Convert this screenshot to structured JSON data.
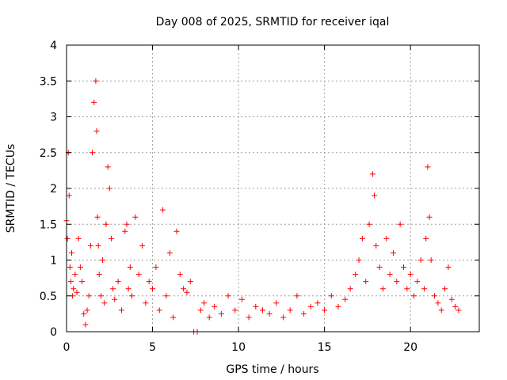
{
  "chart_data": {
    "type": "scatter",
    "title": "Day 008 of 2025, SRMTID for receiver iqal",
    "xlabel": "GPS time / hours",
    "ylabel": "SRMTID / TECUs",
    "xlim": [
      0,
      24
    ],
    "ylim": [
      0,
      4
    ],
    "xticks": [
      0,
      5,
      10,
      15,
      20
    ],
    "xtick_labels": [
      "0",
      "5",
      "10",
      "15",
      "20"
    ],
    "yticks": [
      0,
      0.5,
      1,
      1.5,
      2,
      2.5,
      3,
      3.5,
      4
    ],
    "ytick_labels": [
      "0",
      "0.5",
      "1",
      "1.5",
      "2",
      "2.5",
      "3",
      "3.5",
      "4"
    ],
    "grid": true,
    "marker": "+",
    "color": "#ff0000",
    "series": [
      {
        "name": "SRMTID",
        "x": [
          0.0,
          0.05,
          0.1,
          0.15,
          0.2,
          0.25,
          0.3,
          0.35,
          0.4,
          0.5,
          0.6,
          0.7,
          0.8,
          0.9,
          1.0,
          1.1,
          1.2,
          1.3,
          1.4,
          1.5,
          1.6,
          1.7,
          1.75,
          1.8,
          1.85,
          1.9,
          2.0,
          2.1,
          2.2,
          2.3,
          2.4,
          2.5,
          2.6,
          2.7,
          2.8,
          3.0,
          3.2,
          3.4,
          3.5,
          3.6,
          3.7,
          3.8,
          4.0,
          4.2,
          4.4,
          4.6,
          4.8,
          5.0,
          5.2,
          5.4,
          5.6,
          5.8,
          6.0,
          6.2,
          6.4,
          6.6,
          6.8,
          7.0,
          7.2,
          7.4,
          7.6,
          7.8,
          8.0,
          8.3,
          8.6,
          9.0,
          9.4,
          9.8,
          10.2,
          10.6,
          11.0,
          11.4,
          11.8,
          12.2,
          12.6,
          13.0,
          13.4,
          13.8,
          14.2,
          14.6,
          15.0,
          15.4,
          15.8,
          16.2,
          16.5,
          16.8,
          17.0,
          17.2,
          17.4,
          17.6,
          17.8,
          17.9,
          18.0,
          18.2,
          18.4,
          18.6,
          18.8,
          19.0,
          19.2,
          19.4,
          19.6,
          19.8,
          20.0,
          20.2,
          20.4,
          20.6,
          20.8,
          20.9,
          21.0,
          21.1,
          21.2,
          21.4,
          21.6,
          21.8,
          22.0,
          22.2,
          22.4,
          22.6,
          22.8
        ],
        "y": [
          1.55,
          1.3,
          2.5,
          1.9,
          0.9,
          0.7,
          1.1,
          0.5,
          0.6,
          0.8,
          0.55,
          1.3,
          0.9,
          0.7,
          0.25,
          0.1,
          0.3,
          0.5,
          1.2,
          2.5,
          3.2,
          3.5,
          2.8,
          1.6,
          1.2,
          0.8,
          0.5,
          1.0,
          0.4,
          1.5,
          2.3,
          2.0,
          1.3,
          0.6,
          0.45,
          0.7,
          0.3,
          1.4,
          1.5,
          0.6,
          0.9,
          0.5,
          1.6,
          0.8,
          1.2,
          0.4,
          0.7,
          0.6,
          0.9,
          0.3,
          1.7,
          0.5,
          1.1,
          0.2,
          1.4,
          0.8,
          0.6,
          0.55,
          0.7,
          0.0,
          0.0,
          0.3,
          0.4,
          0.2,
          0.35,
          0.25,
          0.5,
          0.3,
          0.45,
          0.2,
          0.35,
          0.3,
          0.25,
          0.4,
          0.2,
          0.3,
          0.5,
          0.25,
          0.35,
          0.4,
          0.3,
          0.5,
          0.35,
          0.45,
          0.6,
          0.8,
          1.0,
          1.3,
          0.7,
          1.5,
          2.2,
          1.9,
          1.2,
          0.9,
          0.6,
          1.3,
          0.8,
          1.1,
          0.7,
          1.5,
          0.9,
          0.6,
          0.8,
          0.5,
          0.7,
          1.0,
          0.6,
          1.3,
          2.3,
          1.6,
          1.0,
          0.5,
          0.4,
          0.3,
          0.6,
          0.9,
          0.45,
          0.35,
          0.3
        ]
      }
    ]
  }
}
